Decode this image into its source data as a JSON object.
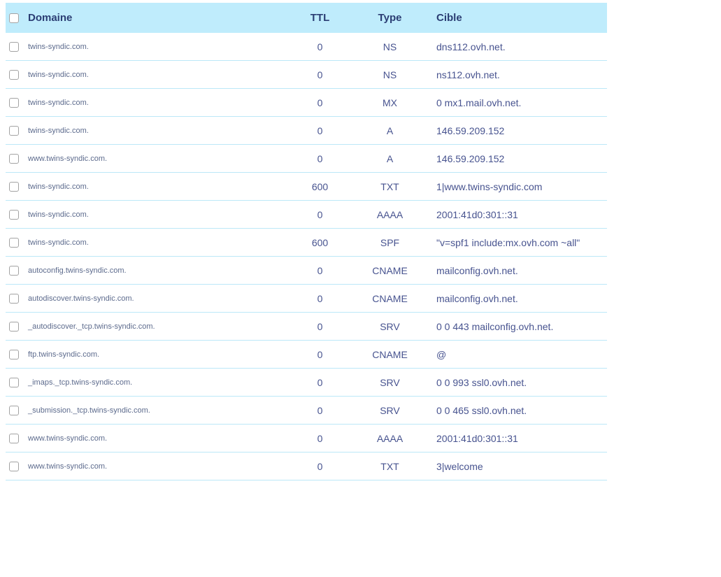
{
  "table": {
    "columns": {
      "domain": "Domaine",
      "ttl": "TTL",
      "type": "Type",
      "target": "Cible"
    }
  },
  "rows": [
    {
      "domain": "twins-syndic.com.",
      "ttl": "0",
      "type": "NS",
      "target": "dns112.ovh.net."
    },
    {
      "domain": "twins-syndic.com.",
      "ttl": "0",
      "type": "NS",
      "target": "ns112.ovh.net."
    },
    {
      "domain": "twins-syndic.com.",
      "ttl": "0",
      "type": "MX",
      "target": "0 mx1.mail.ovh.net."
    },
    {
      "domain": "twins-syndic.com.",
      "ttl": "0",
      "type": "A",
      "target": "146.59.209.152"
    },
    {
      "domain": "www.twins-syndic.com.",
      "ttl": "0",
      "type": "A",
      "target": "146.59.209.152"
    },
    {
      "domain": "twins-syndic.com.",
      "ttl": "600",
      "type": "TXT",
      "target": "1|www.twins-syndic.com"
    },
    {
      "domain": "twins-syndic.com.",
      "ttl": "0",
      "type": "AAAA",
      "target": "2001:41d0:301::31"
    },
    {
      "domain": "twins-syndic.com.",
      "ttl": "600",
      "type": "SPF",
      "target": "\"v=spf1 include:mx.ovh.com ~all\""
    },
    {
      "domain": "autoconfig.twins-syndic.com.",
      "ttl": "0",
      "type": "CNAME",
      "target": "mailconfig.ovh.net."
    },
    {
      "domain": "autodiscover.twins-syndic.com.",
      "ttl": "0",
      "type": "CNAME",
      "target": "mailconfig.ovh.net."
    },
    {
      "domain": "_autodiscover._tcp.twins-syndic.com.",
      "ttl": "0",
      "type": "SRV",
      "target": "0 0 443 mailconfig.ovh.net."
    },
    {
      "domain": "ftp.twins-syndic.com.",
      "ttl": "0",
      "type": "CNAME",
      "target": "@"
    },
    {
      "domain": "_imaps._tcp.twins-syndic.com.",
      "ttl": "0",
      "type": "SRV",
      "target": "0 0 993 ssl0.ovh.net."
    },
    {
      "domain": "_submission._tcp.twins-syndic.com.",
      "ttl": "0",
      "type": "SRV",
      "target": "0 0 465 ssl0.ovh.net."
    },
    {
      "domain": "www.twins-syndic.com.",
      "ttl": "0",
      "type": "AAAA",
      "target": "2001:41d0:301::31"
    },
    {
      "domain": "www.twins-syndic.com.",
      "ttl": "0",
      "type": "TXT",
      "target": "3|welcome"
    }
  ],
  "colors": {
    "header_bg": "#bfecfc",
    "header_text": "#2b3e74",
    "row_border": "#bce8f8",
    "domain_text": "#5d6b8d",
    "value_text": "#47538f"
  }
}
